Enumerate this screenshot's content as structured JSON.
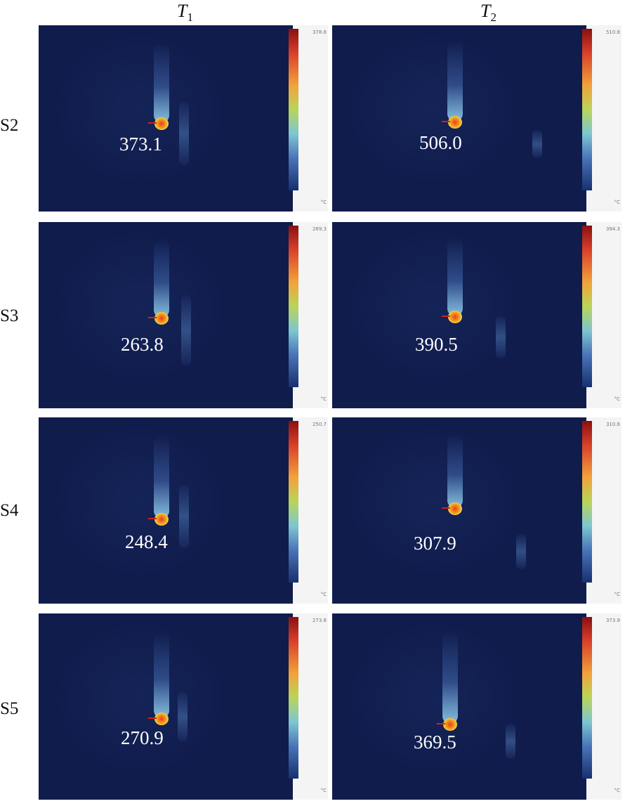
{
  "columns": [
    {
      "label": "T",
      "sub": "1"
    },
    {
      "label": "T",
      "sub": "2"
    }
  ],
  "rows": [
    {
      "label": "S2",
      "values": [
        "373.1",
        "506.0"
      ],
      "scale_max": [
        "378.8",
        "510.8"
      ]
    },
    {
      "label": "S3",
      "values": [
        "263.8",
        "390.5"
      ],
      "scale_max": [
        "269.3",
        "394.3"
      ]
    },
    {
      "label": "S4",
      "values": [
        "248.4",
        "307.9"
      ],
      "scale_max": [
        "250.7",
        "310.6"
      ]
    },
    {
      "label": "S5",
      "values": [
        "270.9",
        "369.5"
      ],
      "scale_max": [
        "273.8",
        "373.9"
      ]
    }
  ],
  "scale_units": "°C",
  "colors": {
    "background": "#101c4c",
    "hot": "#e8401a",
    "text": "#ffffff"
  }
}
